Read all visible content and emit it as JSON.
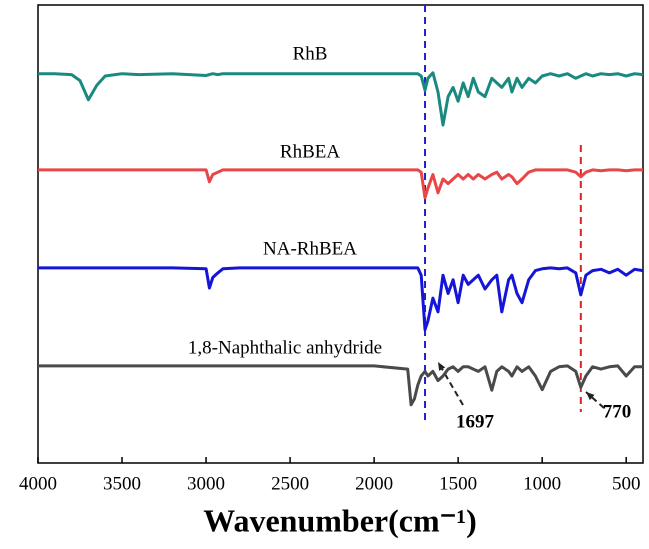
{
  "chart_data": {
    "type": "line",
    "x_label": "Wavenumber(cm⁻¹)",
    "xlim": [
      4000,
      400
    ],
    "xticks": [
      4000,
      3500,
      3000,
      2500,
      2000,
      1500,
      1000,
      500
    ],
    "ylim": [
      0,
      100
    ],
    "x": [
      4000,
      3900,
      3800,
      3750,
      3700,
      3650,
      3600,
      3500,
      3400,
      3200,
      3000,
      2980,
      2960,
      2930,
      2900,
      2800,
      2500,
      2000,
      1800,
      1780,
      1760,
      1740,
      1720,
      1697,
      1680,
      1650,
      1620,
      1590,
      1560,
      1530,
      1500,
      1470,
      1440,
      1410,
      1380,
      1340,
      1300,
      1270,
      1240,
      1200,
      1180,
      1150,
      1120,
      1080,
      1040,
      1000,
      950,
      900,
      850,
      800,
      770,
      740,
      700,
      650,
      600,
      550,
      500,
      450,
      400
    ],
    "series": [
      {
        "name": "RhB",
        "color": "#1a8a80",
        "values": [
          85,
          85,
          84.8,
          83.5,
          79.3,
          82.5,
          84.5,
          85,
          84.8,
          85,
          84.6,
          84.8,
          85,
          84.8,
          85,
          85,
          85,
          85,
          85,
          85,
          85,
          85,
          84.5,
          81.4,
          84,
          85.2,
          81,
          73.8,
          80,
          82,
          79,
          83,
          80,
          84,
          81,
          80,
          84,
          83,
          82,
          84,
          81,
          84,
          82,
          84,
          83,
          84.5,
          85,
          84.5,
          85,
          84,
          84.5,
          85,
          84.5,
          85,
          84.8,
          85,
          84.5,
          85,
          84.8
        ]
      },
      {
        "name": "RhBEA",
        "color": "#e8474a",
        "values": [
          64,
          64,
          64,
          64,
          64,
          64,
          64,
          64,
          64,
          64,
          64,
          61.4,
          63,
          63.5,
          64,
          64,
          64,
          64,
          64,
          64,
          64,
          64,
          63.5,
          57.9,
          60,
          63,
          59,
          62,
          61,
          62,
          63,
          62,
          63,
          62,
          63,
          62,
          63,
          63.5,
          62,
          63,
          62.5,
          61,
          62,
          63.5,
          64,
          64,
          64,
          64,
          64,
          63.5,
          62.5,
          63.5,
          64,
          63.8,
          64,
          64,
          63.8,
          64,
          64
        ]
      },
      {
        "name": "NA-RhBEA",
        "color": "#1515d8",
        "values": [
          42.6,
          42.6,
          42.6,
          42.6,
          42.6,
          42.6,
          42.6,
          42.6,
          42.6,
          42.6,
          42.4,
          38.2,
          40.5,
          41.5,
          42.4,
          42.6,
          42.6,
          42.6,
          42.6,
          42.6,
          42.6,
          42.6,
          41,
          29.1,
          31,
          36,
          33,
          41,
          37,
          40,
          35,
          41,
          39,
          40,
          41,
          38,
          40,
          41,
          33,
          40,
          41,
          37,
          35,
          40,
          42,
          42.4,
          42.6,
          42.4,
          42.6,
          41.5,
          36.7,
          41,
          42,
          42.3,
          41.5,
          42.3,
          41,
          42.3,
          42
        ]
      },
      {
        "name": "1,8-Naphthalic anhydride",
        "color": "#4a4a4a",
        "values": [
          21.2,
          21.2,
          21.2,
          21.2,
          21.2,
          21.2,
          21.2,
          21.2,
          21.2,
          21.2,
          21.2,
          21.2,
          21.2,
          21.2,
          21.2,
          21.2,
          21.2,
          21.2,
          20.5,
          12.7,
          14,
          17,
          19,
          20,
          19,
          20,
          18,
          19,
          20.5,
          21,
          20,
          21,
          21,
          20.5,
          20,
          21,
          15.9,
          20,
          21,
          20,
          19,
          21,
          20,
          21,
          19,
          16,
          20,
          21,
          21.2,
          20,
          16.5,
          19,
          21,
          20.5,
          21,
          21.2,
          19,
          21,
          21
        ]
      }
    ],
    "reference_lines": [
      {
        "x": 1697,
        "color": "#1f1fd0"
      },
      {
        "x": 770,
        "color": "#e02020"
      }
    ]
  }
}
